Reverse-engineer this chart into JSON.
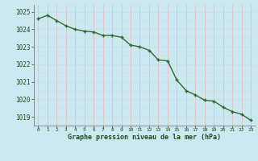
{
  "x": [
    0,
    1,
    2,
    3,
    4,
    5,
    6,
    7,
    8,
    9,
    10,
    11,
    12,
    13,
    14,
    15,
    16,
    17,
    18,
    19,
    20,
    21,
    22,
    23
  ],
  "y": [
    1024.6,
    1024.8,
    1024.5,
    1024.2,
    1024.0,
    1023.9,
    1023.85,
    1023.65,
    1023.65,
    1023.55,
    1023.1,
    1023.0,
    1022.8,
    1022.25,
    1022.2,
    1021.1,
    1020.5,
    1020.25,
    1019.95,
    1019.9,
    1019.55,
    1019.3,
    1019.15,
    1018.8
  ],
  "line_color": "#2d6a2d",
  "marker": "+",
  "bg_color": "#cce8f0",
  "grid_color_v": "#e8b8b8",
  "grid_color_h": "#c8dede",
  "xlabel": "Graphe pression niveau de la mer (hPa)",
  "xlabel_color": "#1a4d1a",
  "tick_color": "#1a4d1a",
  "ylim": [
    1018.5,
    1025.4
  ],
  "yticks": [
    1019,
    1020,
    1021,
    1022,
    1023,
    1024,
    1025
  ],
  "xlim": [
    -0.5,
    23.5
  ]
}
